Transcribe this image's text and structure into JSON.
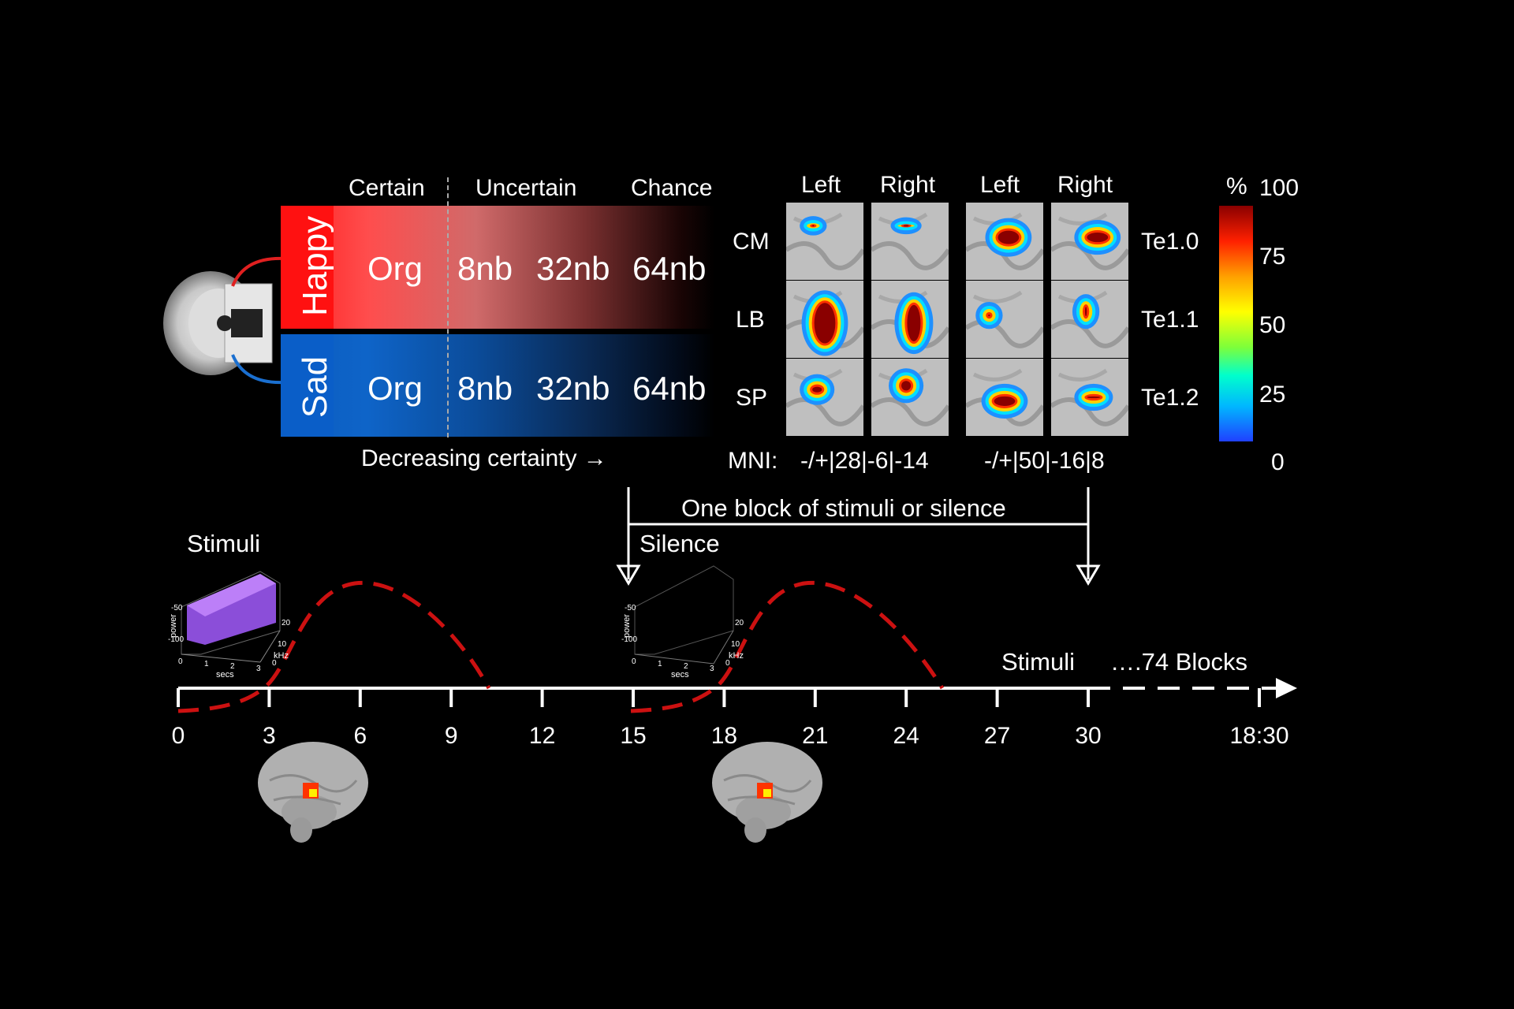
{
  "groups": {
    "certain": "Certain",
    "uncertain": "Uncertain",
    "chance": "Chance"
  },
  "rows": {
    "happy": {
      "label": "Happy",
      "items": [
        "Org",
        "8nb",
        "32nb",
        "64nb"
      ],
      "color": "#ff1a1a"
    },
    "sad": {
      "label": "Sad",
      "items": [
        "Org",
        "8nb",
        "32nb",
        "64nb"
      ],
      "color": "#0a5ec8"
    }
  },
  "decreasing_label": "Decreasing certainty →",
  "map": {
    "col_headers": [
      "Left",
      "Right",
      "Left",
      "Right"
    ],
    "row_labels": [
      "CM",
      "LB",
      "SP"
    ],
    "area_labels": [
      "Te1.0",
      "Te1.1",
      "Te1.2"
    ],
    "mni_prefix": "MNI:",
    "mni_1": "-/+|28|-6|-14",
    "mni_2": "-/+|50|-16|8"
  },
  "colorbar": {
    "unit": "%",
    "ticks": [
      "100",
      "75",
      "50",
      "25",
      "0"
    ]
  },
  "block_label": "One block of stimuli or silence",
  "stimuli_label": "Stimuli",
  "silence_label": "Silence",
  "stimuli_label_2": "Stimuli",
  "blocks_label": "….74 Blocks",
  "timeline": {
    "ticks": [
      "0",
      "3",
      "6",
      "9",
      "12",
      "15",
      "18",
      "21",
      "24",
      "27",
      "30"
    ],
    "end_label": "18:30"
  },
  "spectro": {
    "power": "power",
    "secs": "secs",
    "khz": "kHz",
    "z_ticks": [
      "-50",
      "-100"
    ],
    "x_ticks": [
      "0",
      "1",
      "2",
      "3"
    ],
    "y_ticks": [
      "20",
      "10",
      "0"
    ]
  }
}
